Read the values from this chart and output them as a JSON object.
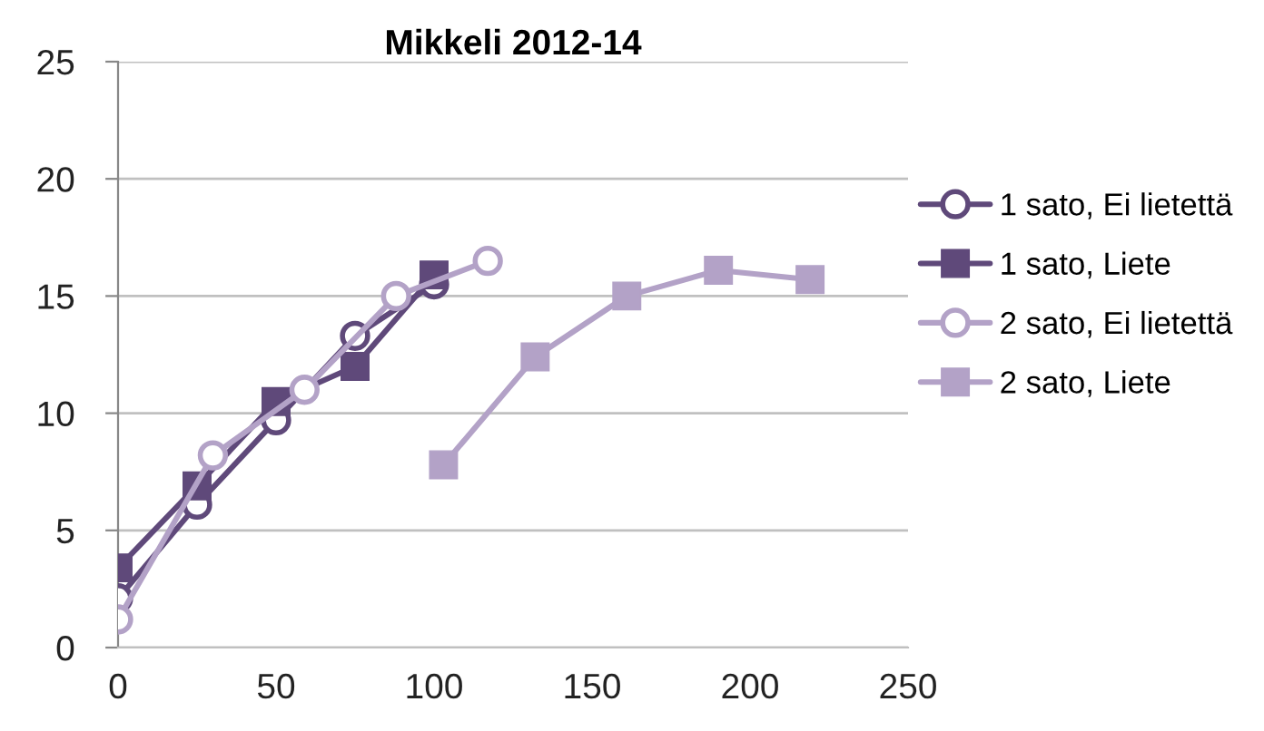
{
  "chart_data": {
    "type": "line",
    "title": "Mikkeli 2012-14",
    "series": [
      {
        "name": "1 sato, Ei lietettä",
        "color": "#5f497a",
        "marker": "circle",
        "x": [
          0,
          25,
          50,
          75,
          100
        ],
        "values": [
          2.1,
          6.1,
          9.7,
          13.3,
          15.5
        ]
      },
      {
        "name": "1 sato, Liete",
        "color": "#5f497a",
        "marker": "square",
        "x": [
          0,
          25,
          50,
          75,
          100
        ],
        "values": [
          3.4,
          6.9,
          10.5,
          12.0,
          15.9
        ]
      },
      {
        "name": "2 sato, Ei lietettä",
        "color": "#b3a2c7",
        "marker": "circle",
        "x": [
          0,
          30,
          59,
          88,
          117
        ],
        "values": [
          1.2,
          8.2,
          11.0,
          15.0,
          16.5
        ]
      },
      {
        "name": "2 sato, Liete",
        "color": "#b3a2c7",
        "marker": "square",
        "x": [
          103,
          132,
          161,
          190,
          219
        ],
        "values": [
          7.8,
          12.4,
          15.0,
          16.1,
          15.7
        ]
      }
    ],
    "xlim": [
      0,
      250
    ],
    "xticks": [
      0,
      50,
      100,
      150,
      200,
      250
    ],
    "ylim": [
      0,
      25
    ],
    "yticks": [
      0,
      5,
      10,
      15,
      20,
      25
    ],
    "grid": "y",
    "legend": "right",
    "line_style": "solid"
  }
}
